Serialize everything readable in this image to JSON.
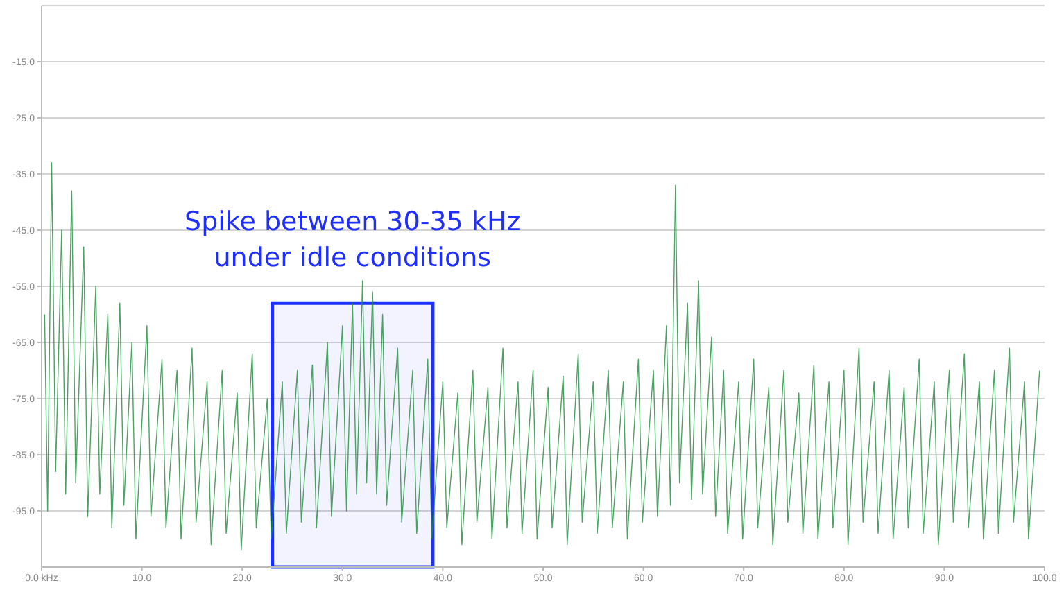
{
  "chart_data": {
    "type": "line",
    "x": [
      0.3,
      0.6,
      1.0,
      1.4,
      2.0,
      2.4,
      3.0,
      3.4,
      4.2,
      4.6,
      5.4,
      5.8,
      6.6,
      7.0,
      7.8,
      8.2,
      9.0,
      9.4,
      10.5,
      10.9,
      12.0,
      12.4,
      13.5,
      13.9,
      15.0,
      15.4,
      16.5,
      16.9,
      18.0,
      18.4,
      19.5,
      19.9,
      21.0,
      21.4,
      22.5,
      22.9,
      24.0,
      24.4,
      25.5,
      25.9,
      27.0,
      27.4,
      28.5,
      28.9,
      30.0,
      30.4,
      31.0,
      31.4,
      32.0,
      32.4,
      33.0,
      33.4,
      34.0,
      34.4,
      35.5,
      35.9,
      37.0,
      37.4,
      38.5,
      38.9,
      40.0,
      40.4,
      41.5,
      41.9,
      43.0,
      43.4,
      44.5,
      44.9,
      46.0,
      46.4,
      47.5,
      47.9,
      49.0,
      49.4,
      50.5,
      50.9,
      52.0,
      52.4,
      53.5,
      53.9,
      55.0,
      55.4,
      56.5,
      56.9,
      58.0,
      58.4,
      59.5,
      59.9,
      61.0,
      61.4,
      62.3,
      62.7,
      63.2,
      63.6,
      64.4,
      64.8,
      65.5,
      65.9,
      66.8,
      67.2,
      68.0,
      68.4,
      69.5,
      69.9,
      71.0,
      71.4,
      72.5,
      72.9,
      74.0,
      74.4,
      75.5,
      75.9,
      77.0,
      77.4,
      78.5,
      78.9,
      80.0,
      80.4,
      81.5,
      81.9,
      83.0,
      83.4,
      84.5,
      84.9,
      86.0,
      86.4,
      87.5,
      87.9,
      89.0,
      89.4,
      90.5,
      90.9,
      92.0,
      92.4,
      93.5,
      93.9,
      95.0,
      95.4,
      96.5,
      96.9,
      98.0,
      98.4,
      99.5
    ],
    "series": [
      {
        "color": "#1e8c3c",
        "values": [
          -60,
          -95,
          -33,
          -88,
          -45,
          -92,
          -38,
          -90,
          -48,
          -96,
          -55,
          -92,
          -60,
          -98,
          -58,
          -94,
          -65,
          -100,
          -62,
          -96,
          -68,
          -98,
          -70,
          -100,
          -66,
          -97,
          -72,
          -101,
          -70,
          -99,
          -74,
          -102,
          -67,
          -98,
          -75,
          -100,
          -72,
          -99,
          -70,
          -97,
          -69,
          -98,
          -65,
          -96,
          -62,
          -95,
          -58,
          -92,
          -54,
          -90,
          -56,
          -92,
          -60,
          -94,
          -66,
          -97,
          -70,
          -99,
          -68,
          -100,
          -72,
          -98,
          -74,
          -101,
          -70,
          -97,
          -73,
          -100,
          -66,
          -98,
          -72,
          -99,
          -70,
          -100,
          -73,
          -98,
          -71,
          -101,
          -67,
          -97,
          -72,
          -99,
          -70,
          -98,
          -72,
          -100,
          -68,
          -97,
          -70,
          -96,
          -62,
          -94,
          -37,
          -90,
          -58,
          -93,
          -54,
          -92,
          -64,
          -96,
          -70,
          -99,
          -72,
          -100,
          -68,
          -98,
          -73,
          -101,
          -70,
          -97,
          -74,
          -99,
          -69,
          -100,
          -72,
          -98,
          -70,
          -101,
          -66,
          -97,
          -72,
          -99,
          -70,
          -100,
          -73,
          -98,
          -68,
          -99,
          -72,
          -101,
          -70,
          -97,
          -67,
          -98,
          -72,
          -100,
          -70,
          -99,
          -66,
          -97,
          -72,
          -100,
          -70
        ]
      }
    ],
    "xlim": [
      0,
      100
    ],
    "xticks": [
      {
        "value": 0,
        "label": "0.0 kHz"
      },
      {
        "value": 10,
        "label": "10.0"
      },
      {
        "value": 20,
        "label": "20.0"
      },
      {
        "value": 30,
        "label": "30.0"
      },
      {
        "value": 40,
        "label": "40.0"
      },
      {
        "value": 50,
        "label": "50.0"
      },
      {
        "value": 60,
        "label": "60.0"
      },
      {
        "value": 70,
        "label": "70.0"
      },
      {
        "value": 80,
        "label": "80.0"
      },
      {
        "value": 90,
        "label": "90.0"
      },
      {
        "value": 100,
        "label": "100.0"
      }
    ],
    "ylim": [
      -105,
      -5
    ],
    "yticks": [
      {
        "value": -95,
        "label": "-95.0"
      },
      {
        "value": -85,
        "label": "-85.0"
      },
      {
        "value": -75,
        "label": "-75.0"
      },
      {
        "value": -65,
        "label": "-65.0"
      },
      {
        "value": -55,
        "label": "-55.0"
      },
      {
        "value": -45,
        "label": "-45.0"
      },
      {
        "value": -35,
        "label": "-35.0"
      },
      {
        "value": -25,
        "label": "-25.0"
      },
      {
        "value": -15,
        "label": "-15.0"
      }
    ],
    "grid": "y",
    "bands": [
      {
        "axis": "x",
        "from": 23,
        "to": 39,
        "color": "#1f2fff"
      }
    ],
    "annotations": [
      {
        "text": "Spike between 30-35 kHz under idle conditions",
        "x": 31,
        "y": -58
      }
    ],
    "legend": false,
    "line_style": "solid",
    "marker": "none"
  }
}
